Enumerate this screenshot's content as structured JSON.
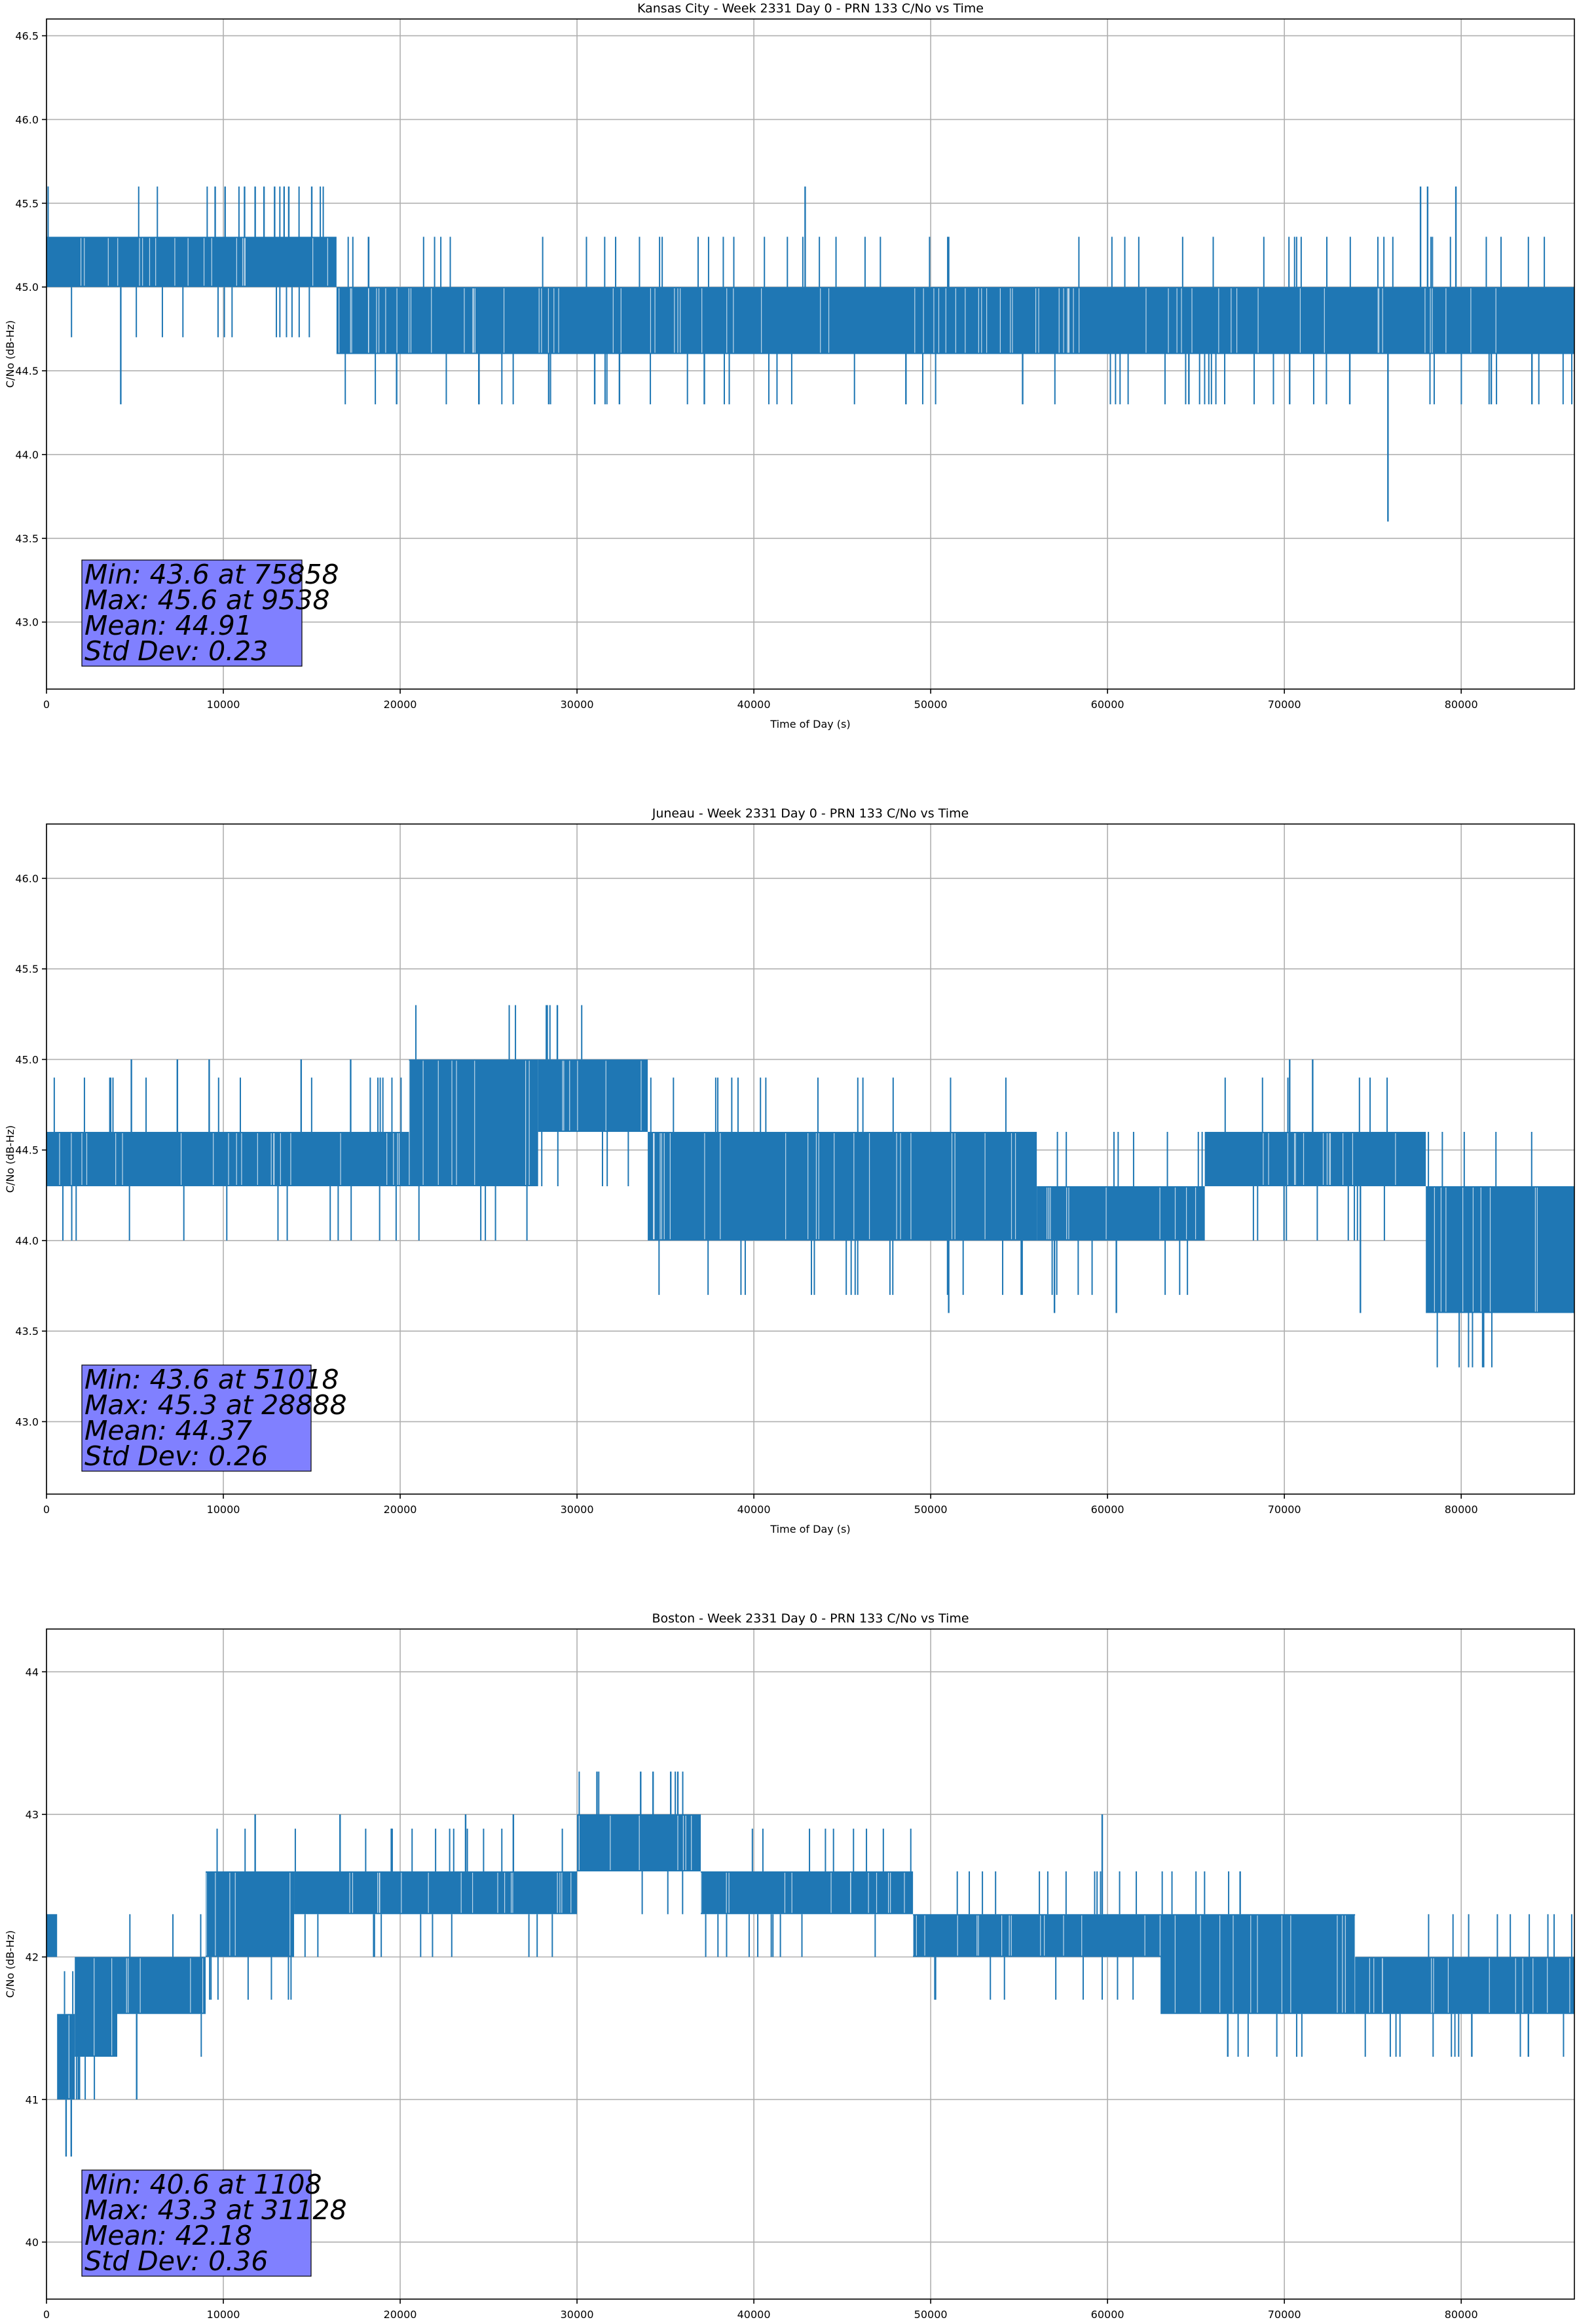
{
  "chart_data": [
    {
      "type": "line",
      "title": "Kansas City - Week 2331 Day 0 - PRN 133 C/No vs Time",
      "xlabel": "Time of Day (s)",
      "ylabel": "C/No (dB-Hz)",
      "xlim": [
        0,
        86400
      ],
      "ylim": [
        42.6,
        46.6
      ],
      "xticks": [
        0,
        10000,
        20000,
        30000,
        40000,
        50000,
        60000,
        70000,
        80000
      ],
      "yticks": [
        43.0,
        43.5,
        44.0,
        44.5,
        45.0,
        45.5,
        46.0,
        46.5
      ],
      "ytick_decimals": 1,
      "grid": true,
      "series_color": "#1f77b4",
      "stats_box": {
        "lines": [
          "Min: 43.6 at 75858",
          "Max: 45.6 at 9538",
          "Mean: 44.91",
          "Std Dev: 0.23"
        ],
        "background": "#8080ff"
      },
      "segments": [
        {
          "x0": 0,
          "x1": 16400,
          "lo": 45.0,
          "hi": 45.3
        },
        {
          "x0": 16400,
          "x1": 86400,
          "lo": 44.6,
          "hi": 45.0
        }
      ],
      "spikes": [
        {
          "x": 75858,
          "y": 43.6
        },
        {
          "x": 9538,
          "y": 45.6
        },
        {
          "x": 10100,
          "y": 45.6
        },
        {
          "x": 11200,
          "y": 45.6
        },
        {
          "x": 11800,
          "y": 45.6
        },
        {
          "x": 12300,
          "y": 45.6
        },
        {
          "x": 12900,
          "y": 45.6
        },
        {
          "x": 13700,
          "y": 45.6
        },
        {
          "x": 15000,
          "y": 45.6
        },
        {
          "x": 42900,
          "y": 45.6
        },
        {
          "x": 77700,
          "y": 45.6
        },
        {
          "x": 78100,
          "y": 45.6
        },
        {
          "x": 79700,
          "y": 45.6
        },
        {
          "x": 4200,
          "y": 44.3
        },
        {
          "x": 19800,
          "y": 44.3
        },
        {
          "x": 28400,
          "y": 44.3
        },
        {
          "x": 31000,
          "y": 44.3
        },
        {
          "x": 32400,
          "y": 44.3
        },
        {
          "x": 37200,
          "y": 44.3
        },
        {
          "x": 48600,
          "y": 44.3
        },
        {
          "x": 55200,
          "y": 44.3
        },
        {
          "x": 64600,
          "y": 44.3
        },
        {
          "x": 70300,
          "y": 44.3
        },
        {
          "x": 73700,
          "y": 44.3
        },
        {
          "x": 81700,
          "y": 44.3
        },
        {
          "x": 84000,
          "y": 44.3
        }
      ]
    },
    {
      "type": "line",
      "title": "Juneau - Week 2331 Day 0 - PRN 133 C/No vs Time",
      "xlabel": "Time of Day (s)",
      "ylabel": "C/No (dB-Hz)",
      "xlim": [
        0,
        86400
      ],
      "ylim": [
        42.6,
        46.3
      ],
      "xticks": [
        0,
        10000,
        20000,
        30000,
        40000,
        50000,
        60000,
        70000,
        80000
      ],
      "yticks": [
        43.0,
        43.5,
        44.0,
        44.5,
        45.0,
        45.5,
        46.0
      ],
      "ytick_decimals": 1,
      "grid": true,
      "series_color": "#1f77b4",
      "stats_box": {
        "lines": [
          "Min: 43.6 at 51018",
          "Max: 45.3 at 28888",
          "Mean: 44.37",
          "Std Dev: 0.26"
        ],
        "background": "#8080ff"
      },
      "segments": [
        {
          "x0": 0,
          "x1": 20500,
          "lo": 44.3,
          "hi": 44.6
        },
        {
          "x0": 20500,
          "x1": 27800,
          "lo": 44.3,
          "hi": 45.0
        },
        {
          "x0": 27800,
          "x1": 34000,
          "lo": 44.6,
          "hi": 45.0
        },
        {
          "x0": 34000,
          "x1": 56000,
          "lo": 44.0,
          "hi": 44.6
        },
        {
          "x0": 56000,
          "x1": 65500,
          "lo": 44.0,
          "hi": 44.3
        },
        {
          "x0": 65500,
          "x1": 78000,
          "lo": 44.3,
          "hi": 44.6
        },
        {
          "x0": 78000,
          "x1": 86400,
          "lo": 43.6,
          "hi": 44.3
        }
      ],
      "spikes": [
        {
          "x": 28888,
          "y": 45.3
        },
        {
          "x": 51018,
          "y": 43.6
        },
        {
          "x": 4800,
          "y": 45.0
        },
        {
          "x": 7400,
          "y": 45.0
        },
        {
          "x": 9200,
          "y": 45.0
        },
        {
          "x": 14400,
          "y": 45.0
        },
        {
          "x": 17200,
          "y": 45.0
        },
        {
          "x": 70300,
          "y": 45.0
        },
        {
          "x": 71600,
          "y": 45.0
        },
        {
          "x": 57000,
          "y": 43.6
        },
        {
          "x": 60500,
          "y": 43.6
        },
        {
          "x": 74300,
          "y": 43.6
        }
      ]
    },
    {
      "type": "line",
      "title": "Boston - Week 2331 Day 0 - PRN 133 C/No vs Time",
      "xlabel": "Time of Day (s)",
      "ylabel": "C/No (dB-Hz)",
      "xlim": [
        0,
        86400
      ],
      "ylim": [
        39.6,
        44.3
      ],
      "xticks": [
        0,
        10000,
        20000,
        30000,
        40000,
        50000,
        60000,
        70000,
        80000
      ],
      "yticks": [
        40,
        41,
        42,
        43,
        44
      ],
      "ytick_decimals": 0,
      "grid": true,
      "series_color": "#1f77b4",
      "stats_box": {
        "lines": [
          "Min: 40.6 at 1108",
          "Max: 43.3 at 31128",
          "Mean: 42.18",
          "Std Dev: 0.36"
        ],
        "background": "#8080ff"
      },
      "segments": [
        {
          "x0": 0,
          "x1": 600,
          "lo": 42.0,
          "hi": 42.3
        },
        {
          "x0": 600,
          "x1": 1600,
          "lo": 41.0,
          "hi": 41.6
        },
        {
          "x0": 1600,
          "x1": 4000,
          "lo": 41.3,
          "hi": 42.0
        },
        {
          "x0": 4000,
          "x1": 9000,
          "lo": 41.6,
          "hi": 42.0
        },
        {
          "x0": 9000,
          "x1": 14000,
          "lo": 42.0,
          "hi": 42.6
        },
        {
          "x0": 14000,
          "x1": 30000,
          "lo": 42.3,
          "hi": 42.6
        },
        {
          "x0": 30000,
          "x1": 37000,
          "lo": 42.6,
          "hi": 43.0
        },
        {
          "x0": 37000,
          "x1": 49000,
          "lo": 42.3,
          "hi": 42.6
        },
        {
          "x0": 49000,
          "x1": 63000,
          "lo": 42.0,
          "hi": 42.3
        },
        {
          "x0": 63000,
          "x1": 74000,
          "lo": 41.6,
          "hi": 42.3
        },
        {
          "x0": 74000,
          "x1": 86400,
          "lo": 41.6,
          "hi": 42.0
        }
      ],
      "spikes": [
        {
          "x": 1108,
          "y": 40.6
        },
        {
          "x": 1400,
          "y": 40.6
        },
        {
          "x": 31128,
          "y": 43.3
        },
        {
          "x": 33600,
          "y": 43.3
        },
        {
          "x": 34300,
          "y": 43.3
        },
        {
          "x": 35300,
          "y": 43.3
        },
        {
          "x": 35700,
          "y": 43.3
        },
        {
          "x": 11800,
          "y": 43.0
        },
        {
          "x": 16600,
          "y": 43.0
        },
        {
          "x": 23700,
          "y": 43.0
        },
        {
          "x": 26400,
          "y": 43.0
        },
        {
          "x": 59700,
          "y": 43.0
        },
        {
          "x": 67500,
          "y": 42.6
        },
        {
          "x": 66800,
          "y": 41.3
        },
        {
          "x": 80600,
          "y": 41.3
        },
        {
          "x": 83800,
          "y": 41.3
        },
        {
          "x": 5100,
          "y": 41.0
        },
        {
          "x": 1800,
          "y": 41.0
        }
      ]
    }
  ]
}
